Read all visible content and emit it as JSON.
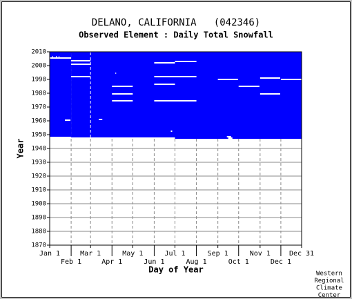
{
  "chart_data": {
    "type": "coverage",
    "title": "DELANO, CALIFORNIA   (042346)",
    "subtitle": "Observed Element : Daily Total Snowfall",
    "xlabel": "Day of Year",
    "ylabel": "Year",
    "credit": [
      "Western",
      "Regional",
      "Climate",
      "Center"
    ],
    "color": "#0000ff",
    "missing_color": "#ffffff",
    "xlim": [
      1,
      365
    ],
    "ylim": [
      1870,
      2010
    ],
    "xticks": [
      {
        "value": 1,
        "label": "Jan 1"
      },
      {
        "value": 32,
        "label": "Feb 1"
      },
      {
        "value": 60,
        "label": "Mar 1"
      },
      {
        "value": 91,
        "label": "Apr 1"
      },
      {
        "value": 121,
        "label": "May 1"
      },
      {
        "value": 152,
        "label": "Jun 1"
      },
      {
        "value": 182,
        "label": "Jul 1"
      },
      {
        "value": 213,
        "label": "Aug 1"
      },
      {
        "value": 244,
        "label": "Sep 1"
      },
      {
        "value": 274,
        "label": "Oct 1"
      },
      {
        "value": 305,
        "label": "Nov 1"
      },
      {
        "value": 335,
        "label": "Dec 1"
      },
      {
        "value": 365,
        "label": "Dec 31"
      }
    ],
    "yticks": [
      1870,
      1880,
      1890,
      1900,
      1910,
      1920,
      1930,
      1940,
      1950,
      1960,
      1970,
      1980,
      1990,
      2000,
      2010
    ],
    "grid": true,
    "coverage": [
      {
        "days": [
          1,
          32
        ],
        "years": [
          1948.5,
          2010
        ]
      },
      {
        "days": [
          32,
          182
        ],
        "years": [
          1948,
          2010
        ]
      },
      {
        "days": [
          182,
          365
        ],
        "years": [
          1947,
          2010
        ]
      }
    ],
    "missing": [
      {
        "days": [
          1,
          32
        ],
        "year": 2005.5
      },
      {
        "days": [
          5,
          6
        ],
        "year": 2006.5
      },
      {
        "days": [
          10,
          11
        ],
        "year": 2006.5
      },
      {
        "days": [
          14,
          15
        ],
        "year": 2006.5
      },
      {
        "days": [
          32,
          60
        ],
        "year": 2003.5
      },
      {
        "days": [
          32,
          60
        ],
        "year": 2001
      },
      {
        "days": [
          32,
          60
        ],
        "year": 1992
      },
      {
        "days": [
          23,
          31
        ],
        "year": 1960.5
      },
      {
        "days": [
          72,
          77
        ],
        "year": 1961
      },
      {
        "days": [
          96,
          97
        ],
        "year": 1994.5
      },
      {
        "days": [
          91,
          121
        ],
        "year": 1985
      },
      {
        "days": [
          91,
          121
        ],
        "year": 1979.5
      },
      {
        "days": [
          91,
          121
        ],
        "year": 1974.5
      },
      {
        "days": [
          152,
          182
        ],
        "year": 2002
      },
      {
        "days": [
          152,
          182
        ],
        "year": 1992
      },
      {
        "days": [
          152,
          182
        ],
        "year": 1986.5
      },
      {
        "days": [
          152,
          213
        ],
        "year": 1974.5
      },
      {
        "days": [
          182,
          213
        ],
        "year": 2003
      },
      {
        "days": [
          182,
          213
        ],
        "year": 1992
      },
      {
        "days": [
          176,
          178
        ],
        "year": 1952.5
      },
      {
        "days": [
          244,
          273
        ],
        "year": 1990
      },
      {
        "days": [
          257,
          263
        ],
        "year": 1948.5
      },
      {
        "days": [
          259,
          265
        ],
        "year": 1947.5
      },
      {
        "days": [
          274,
          304
        ],
        "year": 1985
      },
      {
        "days": [
          305,
          334
        ],
        "year": 1991
      },
      {
        "days": [
          305,
          334
        ],
        "year": 1979.5
      },
      {
        "days": [
          335,
          365
        ],
        "year": 1990
      },
      {
        "day": 60,
        "years": [
          1948,
          2010
        ]
      }
    ]
  }
}
